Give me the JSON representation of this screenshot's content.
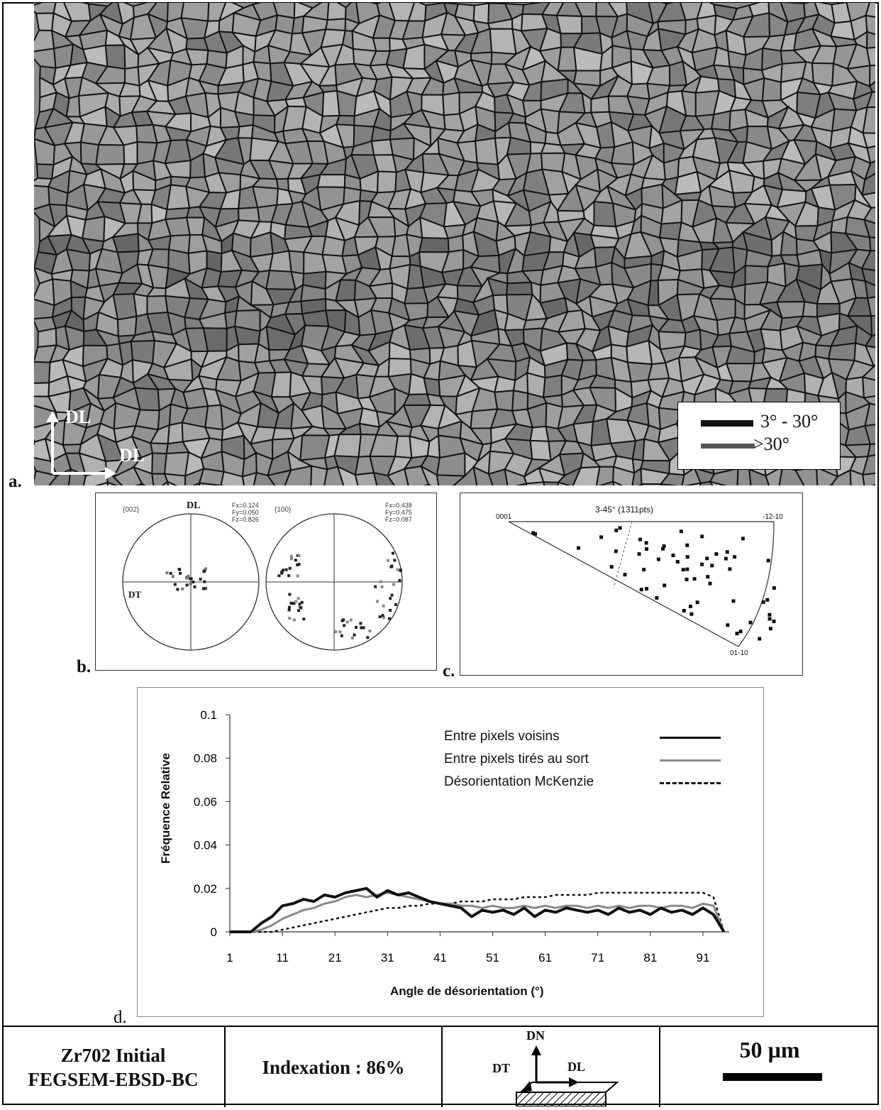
{
  "panel_a": {
    "letter": "a.",
    "axis_up": "DL",
    "axis_right": "DL",
    "legend": [
      {
        "label": "3° - 30°",
        "color": "#111111"
      },
      {
        "label": ">30°",
        "color": "#555555"
      }
    ]
  },
  "panel_b": {
    "letter": "b.",
    "left": {
      "title": "{002}",
      "dl": "DL",
      "dt": "DT",
      "fx": "Fx=0.124",
      "fy": "Fy=0.050",
      "fz": "Fz=0.826"
    },
    "right": {
      "title": "{100}",
      "fx": "Fx=0.438",
      "fy": "Fy=0.475",
      "fz": "Fz=0.087"
    }
  },
  "panel_c": {
    "letter": "c.",
    "title": "3-45° (1311pts)",
    "corner_left": "0001",
    "corner_right": "-12-10",
    "corner_bottom": "01-10"
  },
  "panel_d": {
    "letter": "d.",
    "ylabel": "Fréquence Relative",
    "xlabel": "Angle de désorientation (°)",
    "yticks": [
      "0.1",
      "0.08",
      "0.06",
      "0.04",
      "0.02",
      "0"
    ],
    "xticks": [
      "1",
      "11",
      "21",
      "31",
      "41",
      "51",
      "61",
      "71",
      "81",
      "91"
    ]
  },
  "chart_data": {
    "type": "line",
    "xlabel": "Angle de désorientation (°)",
    "ylabel": "Fréquence Relative",
    "ylim": [
      0,
      0.1
    ],
    "xlim": [
      1,
      96
    ],
    "x": [
      1,
      5,
      7,
      9,
      11,
      13,
      15,
      17,
      19,
      21,
      23,
      25,
      27,
      29,
      31,
      33,
      35,
      37,
      39,
      41,
      43,
      45,
      47,
      49,
      51,
      53,
      55,
      57,
      59,
      61,
      63,
      65,
      67,
      69,
      71,
      73,
      75,
      77,
      79,
      81,
      83,
      85,
      87,
      89,
      91,
      93,
      95
    ],
    "series": [
      {
        "name": "Entre pixels voisins",
        "color": "#111111",
        "dash": "solid",
        "values": [
          0,
          0,
          0.004,
          0.007,
          0.012,
          0.013,
          0.015,
          0.014,
          0.017,
          0.016,
          0.018,
          0.019,
          0.02,
          0.016,
          0.019,
          0.017,
          0.018,
          0.016,
          0.014,
          0.013,
          0.012,
          0.011,
          0.007,
          0.01,
          0.009,
          0.01,
          0.008,
          0.011,
          0.007,
          0.01,
          0.009,
          0.011,
          0.01,
          0.009,
          0.01,
          0.008,
          0.011,
          0.009,
          0.01,
          0.008,
          0.011,
          0.009,
          0.01,
          0.008,
          0.011,
          0.008,
          0
        ]
      },
      {
        "name": "Entre pixels tirés au sort",
        "color": "#8a8a8a",
        "dash": "solid",
        "values": [
          0,
          0,
          0.001,
          0.003,
          0.006,
          0.008,
          0.01,
          0.011,
          0.013,
          0.014,
          0.016,
          0.017,
          0.016,
          0.017,
          0.018,
          0.017,
          0.016,
          0.015,
          0.014,
          0.013,
          0.013,
          0.012,
          0.012,
          0.011,
          0.012,
          0.011,
          0.011,
          0.012,
          0.011,
          0.012,
          0.011,
          0.012,
          0.012,
          0.011,
          0.012,
          0.011,
          0.012,
          0.011,
          0.012,
          0.012,
          0.011,
          0.012,
          0.012,
          0.011,
          0.013,
          0.012,
          0
        ]
      },
      {
        "name": "Désorientation McKenzie",
        "color": "#111111",
        "dash": "dashed",
        "values": [
          0,
          0,
          0,
          0,
          0.001,
          0.002,
          0.003,
          0.004,
          0.005,
          0.006,
          0.007,
          0.008,
          0.009,
          0.01,
          0.011,
          0.011,
          0.012,
          0.012,
          0.013,
          0.013,
          0.013,
          0.014,
          0.014,
          0.014,
          0.015,
          0.015,
          0.015,
          0.016,
          0.016,
          0.016,
          0.017,
          0.017,
          0.017,
          0.017,
          0.018,
          0.018,
          0.018,
          0.018,
          0.018,
          0.018,
          0.018,
          0.018,
          0.018,
          0.018,
          0.018,
          0.016,
          0
        ]
      }
    ],
    "legend": "top-right",
    "grid": false
  },
  "footer": {
    "title_line1": "Zr702 Initial",
    "title_line2": "FEGSEM-EBSD-BC",
    "indexation": "Indexation : 86%",
    "axis_dn": "DN",
    "axis_dt": "DT",
    "axis_dl": "DL",
    "scale_label": "50 µm"
  }
}
